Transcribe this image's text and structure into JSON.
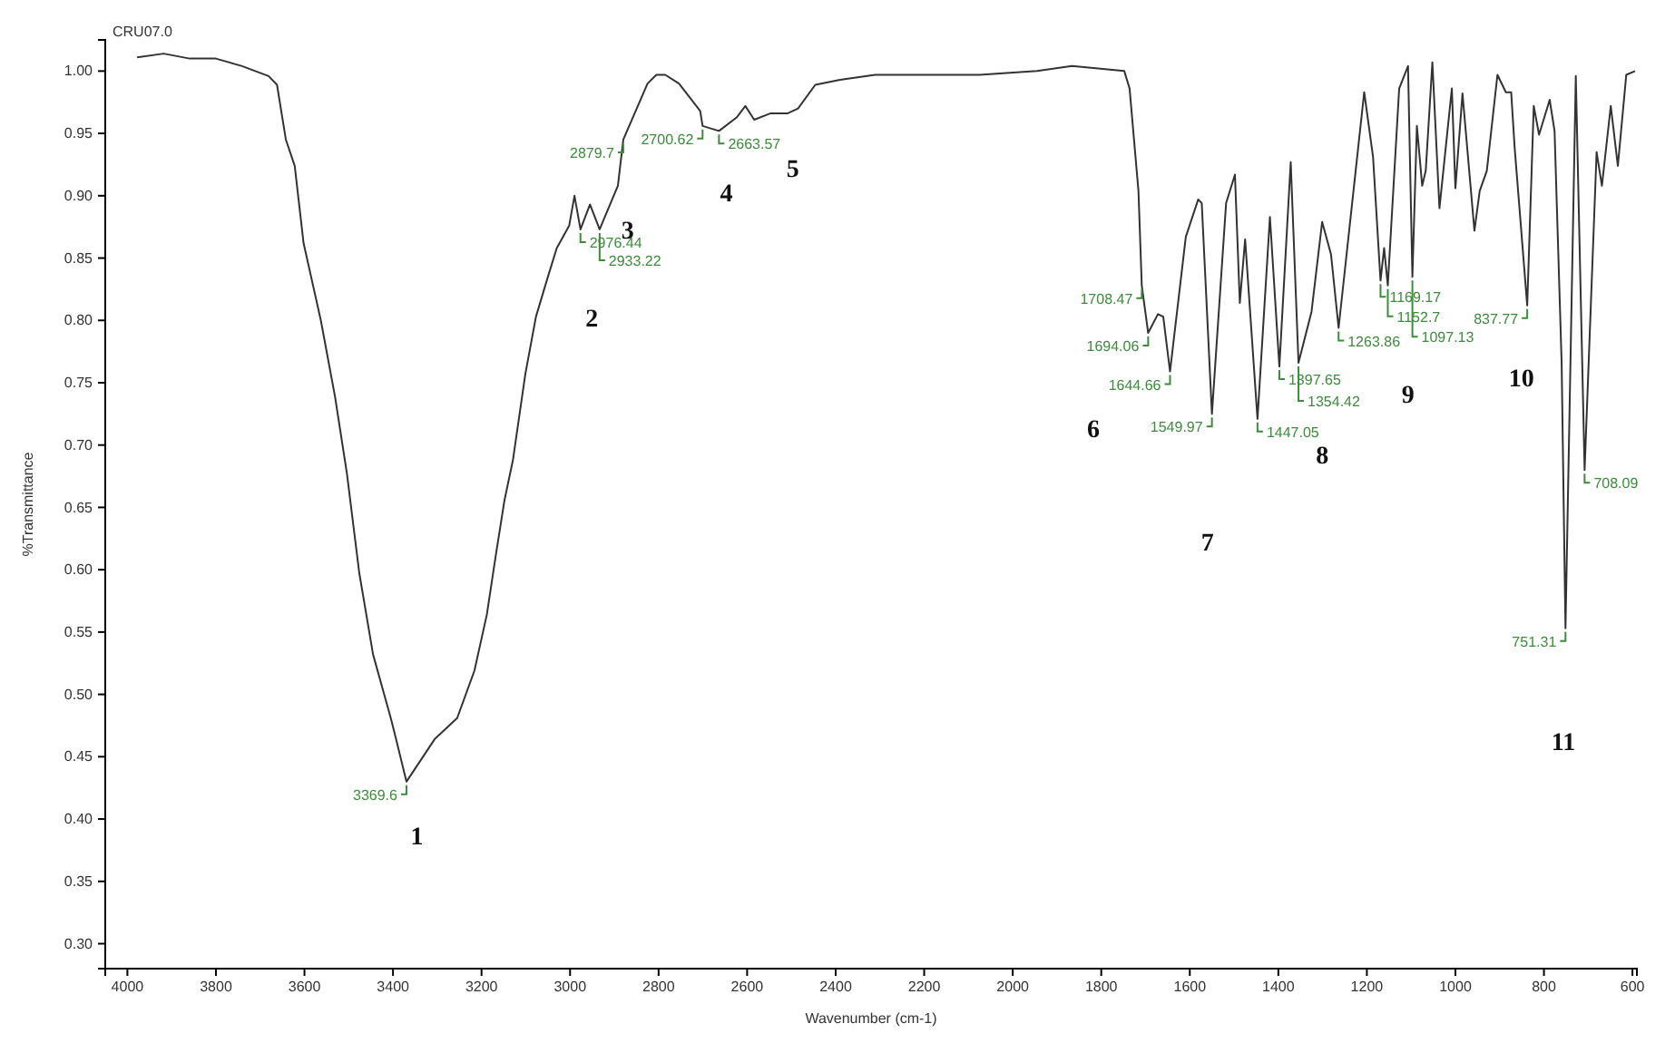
{
  "chart_data": {
    "type": "line",
    "title": "CRU07.0",
    "xlabel": "Wavenumber (cm-1)",
    "ylabel": "%Transmittance",
    "xlim": [
      4050,
      590
    ],
    "ylim": [
      0.28,
      1.025
    ],
    "xticks": [
      4000,
      3800,
      3600,
      3400,
      3200,
      3000,
      2800,
      2600,
      2400,
      2200,
      2000,
      1800,
      1600,
      1400,
      1200,
      1000,
      800,
      600
    ],
    "yticks": [
      {
        "value": 0.3,
        "label": "0.30"
      },
      {
        "value": 0.35,
        "label": "0.35"
      },
      {
        "value": 0.4,
        "label": "0.40"
      },
      {
        "value": 0.45,
        "label": "0.45"
      },
      {
        "value": 0.5,
        "label": "0.50"
      },
      {
        "value": 0.55,
        "label": "0.55"
      },
      {
        "value": 0.6,
        "label": "0.60"
      },
      {
        "value": 0.65,
        "label": "0.65"
      },
      {
        "value": 0.7,
        "label": "0.70"
      },
      {
        "value": 0.75,
        "label": "0.75"
      },
      {
        "value": 0.8,
        "label": "0.80"
      },
      {
        "value": 0.85,
        "label": "0.85"
      },
      {
        "value": 0.9,
        "label": "0.90"
      },
      {
        "value": 0.95,
        "label": "0.95"
      },
      {
        "value": 1.0,
        "label": "1.00"
      }
    ],
    "series": [
      {
        "color": "#333333",
        "line_style": "solid",
        "x": [
          3978,
          3918,
          3859,
          3800,
          3741,
          3681,
          3662,
          3642,
          3622,
          3602,
          3563,
          3531,
          3504,
          3476,
          3445,
          3405,
          3393,
          3369.6,
          3306,
          3255,
          3216,
          3188,
          3168,
          3148,
          3129,
          3101,
          3077,
          3050,
          3030,
          3002,
          2990,
          2976.44,
          2955,
          2933.22,
          2892,
          2879.7,
          2825,
          2805,
          2785,
          2754,
          2706,
          2700.62,
          2663.57,
          2623,
          2604,
          2584,
          2548,
          2509,
          2485,
          2446,
          2390,
          2311,
          2209,
          2075,
          1945,
          1866,
          1748,
          1736,
          1716,
          1708.47,
          1694.06,
          1672,
          1660,
          1644.66,
          1609,
          1581,
          1573,
          1549.97,
          1518,
          1498,
          1487,
          1475,
          1447.05,
          1419,
          1397.65,
          1372,
          1354.42,
          1325,
          1301,
          1281,
          1263.86,
          1206,
          1186,
          1169.17,
          1161,
          1152.7,
          1127,
          1107,
          1097.13,
          1087,
          1075,
          1067,
          1052,
          1036,
          1008,
          1000,
          984,
          957,
          945,
          929,
          905,
          886,
          874,
          866,
          837.77,
          823,
          811,
          787,
          776,
          760,
          751.31,
          728,
          708.09,
          681,
          669,
          649,
          633,
          614,
          594
        ],
        "values": [
          1.011,
          1.014,
          1.01,
          1.01,
          1.004,
          0.996,
          0.989,
          0.945,
          0.924,
          0.862,
          0.8,
          0.739,
          0.677,
          0.597,
          0.532,
          0.481,
          0.464,
          0.43,
          0.464,
          0.481,
          0.519,
          0.564,
          0.611,
          0.656,
          0.688,
          0.757,
          0.803,
          0.835,
          0.858,
          0.876,
          0.9,
          0.873,
          0.893,
          0.873,
          0.908,
          0.945,
          0.99,
          0.997,
          0.997,
          0.99,
          0.968,
          0.956,
          0.952,
          0.963,
          0.972,
          0.961,
          0.966,
          0.966,
          0.97,
          0.989,
          0.993,
          0.997,
          0.997,
          0.997,
          1.0,
          1.004,
          1.0,
          0.986,
          0.904,
          0.828,
          0.79,
          0.805,
          0.803,
          0.759,
          0.867,
          0.897,
          0.894,
          0.725,
          0.894,
          0.917,
          0.814,
          0.865,
          0.721,
          0.883,
          0.763,
          0.927,
          0.766,
          0.807,
          0.879,
          0.853,
          0.794,
          0.983,
          0.931,
          0.832,
          0.858,
          0.828,
          0.986,
          1.004,
          0.835,
          0.956,
          0.908,
          0.92,
          1.007,
          0.89,
          0.986,
          0.906,
          0.982,
          0.872,
          0.904,
          0.92,
          0.997,
          0.983,
          0.983,
          0.938,
          0.812,
          0.972,
          0.949,
          0.977,
          0.952,
          0.766,
          0.553,
          0.996,
          0.68,
          0.935,
          0.908,
          0.972,
          0.924,
          0.997,
          1.0
        ]
      }
    ],
    "annotations": [
      {
        "text": "3369.6",
        "x": 3369.6,
        "y": 0.43
      },
      {
        "text": "2976.44",
        "x": 2976.44,
        "y": 0.873
      },
      {
        "text": "2933.22",
        "x": 2933.22,
        "y": 0.873
      },
      {
        "text": "2879.7",
        "x": 2879.7,
        "y": 0.945
      },
      {
        "text": "2700.62",
        "x": 2700.62,
        "y": 0.956
      },
      {
        "text": "2663.57",
        "x": 2663.57,
        "y": 0.952
      },
      {
        "text": "1708.47",
        "x": 1708.47,
        "y": 0.828
      },
      {
        "text": "1694.06",
        "x": 1694.06,
        "y": 0.79
      },
      {
        "text": "1644.66",
        "x": 1644.66,
        "y": 0.759
      },
      {
        "text": "1549.97",
        "x": 1549.97,
        "y": 0.725
      },
      {
        "text": "1447.05",
        "x": 1447.05,
        "y": 0.721
      },
      {
        "text": "1397.65",
        "x": 1397.65,
        "y": 0.763
      },
      {
        "text": "1354.42",
        "x": 1354.42,
        "y": 0.766
      },
      {
        "text": "1263.86",
        "x": 1263.86,
        "y": 0.794
      },
      {
        "text": "1169.17",
        "x": 1169.17,
        "y": 0.832
      },
      {
        "text": "1152.7",
        "x": 1152.7,
        "y": 0.828
      },
      {
        "text": "1097.13",
        "x": 1097.13,
        "y": 0.835
      },
      {
        "text": "837.77",
        "x": 837.77,
        "y": 0.812
      },
      {
        "text": "751.31",
        "x": 751.31,
        "y": 0.553
      },
      {
        "text": "708.09",
        "x": 708.09,
        "y": 0.68
      },
      "1",
      "2",
      "3",
      "4",
      "5",
      "6",
      "7",
      "8",
      "9",
      "10",
      "11"
    ]
  }
}
